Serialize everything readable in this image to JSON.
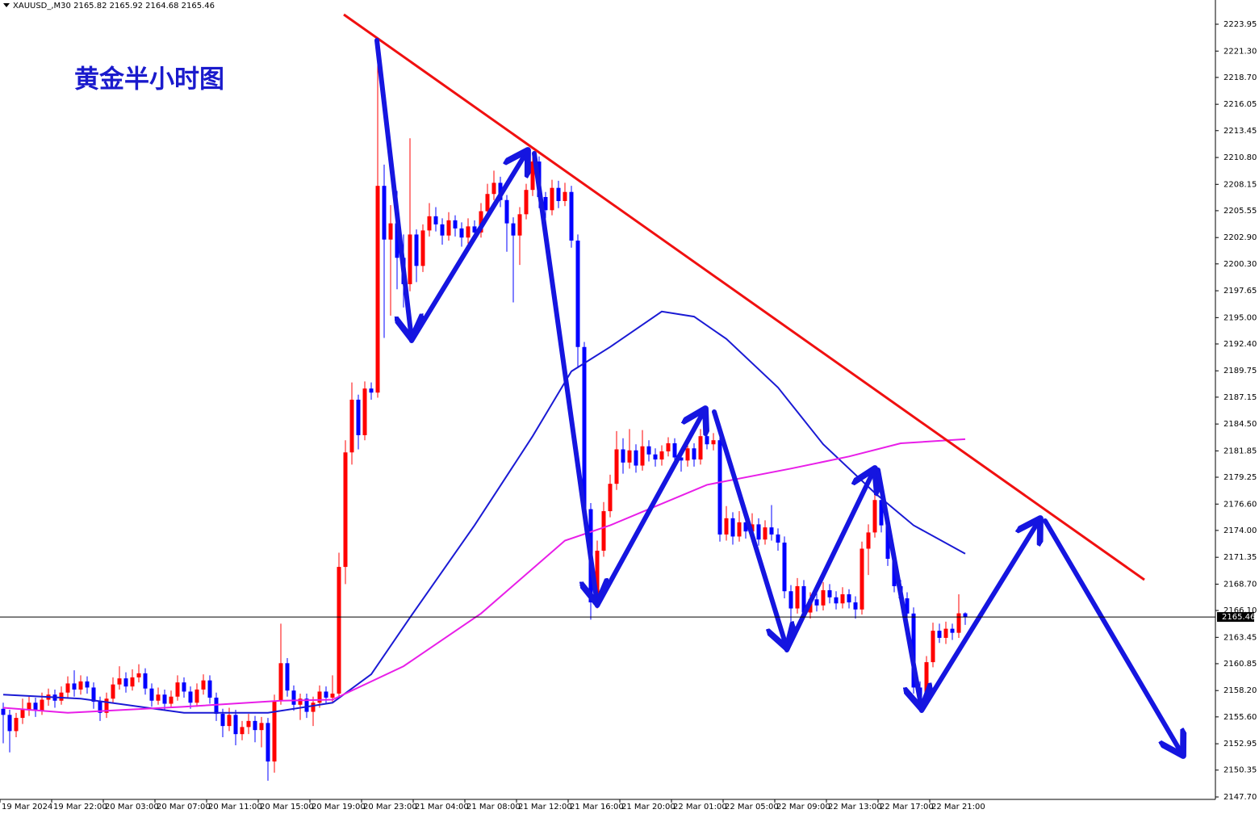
{
  "header": "XAUUSD_,M30  2165.82 2165.92 2164.68 2165.46",
  "chart_data": {
    "type": "candlestick",
    "title": "黄金半小时图",
    "up_color": "#ff0000",
    "down_color": "#0000ff",
    "ylim": [
      2147.46,
      2226.34
    ],
    "yticks": [
      {
        "value": 2147.7,
        "label": "2147.70"
      },
      2150.35,
      2152.95,
      {
        "value": 2155.6,
        "label": "2155.60"
      },
      {
        "value": 2158.2,
        "label": "2158.20"
      },
      2160.85,
      2163.45,
      {
        "value": 2166.1,
        "label": "2166.10"
      },
      {
        "value": 2168.7,
        "label": "2168.70"
      },
      2171.35,
      {
        "value": 2174.0,
        "label": "2174.00"
      },
      {
        "value": 2176.6,
        "label": "2176.60"
      },
      2179.25,
      2181.85,
      {
        "value": 2184.5,
        "label": "2184.50"
      },
      2187.15,
      2189.75,
      {
        "value": 2192.4,
        "label": "2192.40"
      },
      {
        "value": 2195.0,
        "label": "2195.00"
      },
      2197.65,
      {
        "value": 2200.3,
        "label": "2200.30"
      },
      {
        "value": 2202.9,
        "label": "2202.90"
      },
      2205.55,
      2208.15,
      {
        "value": 2210.8,
        "label": "2210.80"
      },
      2213.45,
      2216.05,
      {
        "value": 2218.7,
        "label": "2218.70"
      },
      {
        "value": 2221.3,
        "label": "2221.30"
      },
      2223.95
    ],
    "last_price": 2165.46,
    "categories": [
      "19 Mar 2024",
      null,
      null,
      null,
      null,
      null,
      null,
      null,
      "19 Mar 22:00",
      null,
      null,
      null,
      null,
      null,
      null,
      null,
      "20 Mar 03:00",
      null,
      null,
      null,
      null,
      null,
      null,
      null,
      "20 Mar 07:00",
      null,
      null,
      null,
      null,
      null,
      null,
      null,
      "20 Mar 11:00",
      null,
      null,
      null,
      null,
      null,
      null,
      null,
      "20 Mar 15:00",
      null,
      null,
      null,
      null,
      null,
      null,
      null,
      "20 Mar 19:00",
      null,
      null,
      null,
      null,
      null,
      null,
      null,
      "20 Mar 23:00",
      null,
      null,
      null,
      null,
      null,
      null,
      null,
      "21 Mar 04:00",
      null,
      null,
      null,
      null,
      null,
      null,
      null,
      "21 Mar 08:00",
      null,
      null,
      null,
      null,
      null,
      null,
      null,
      "21 Mar 12:00",
      null,
      null,
      null,
      null,
      null,
      null,
      null,
      "21 Mar 16:00",
      null,
      null,
      null,
      null,
      null,
      null,
      null,
      "21 Mar 20:00",
      null,
      null,
      null,
      null,
      null,
      null,
      null,
      "22 Mar 01:00",
      null,
      null,
      null,
      null,
      null,
      null,
      null,
      "22 Mar 05:00",
      null,
      null,
      null,
      null,
      null,
      null,
      null,
      "22 Mar 09:00",
      null,
      null,
      null,
      null,
      null,
      null,
      null,
      "22 Mar 13:00",
      null,
      null,
      null,
      null,
      null,
      null,
      null,
      "22 Mar 17:00",
      null,
      null,
      null,
      null,
      null,
      null,
      null,
      "22 Mar 21:00",
      null,
      null,
      null,
      null,
      null
    ],
    "ohlc": [
      [
        2156.4,
        2157.0,
        2153.0,
        2155.8
      ],
      [
        2155.8,
        2156.3,
        2152.1,
        2154.2
      ],
      [
        2154.2,
        2156.0,
        2153.6,
        2155.5
      ],
      [
        2155.5,
        2157.4,
        2154.9,
        2156.3
      ],
      [
        2156.3,
        2157.6,
        2155.7,
        2157.0
      ],
      [
        2157.0,
        2157.5,
        2155.6,
        2156.2
      ],
      [
        2156.2,
        2158.0,
        2155.8,
        2157.3
      ],
      [
        2157.3,
        2158.4,
        2156.7,
        2157.8
      ],
      [
        2157.8,
        2158.3,
        2156.5,
        2157.2
      ],
      [
        2157.2,
        2158.6,
        2156.8,
        2158.0
      ],
      [
        2158.0,
        2159.6,
        2157.4,
        2158.9
      ],
      [
        2158.9,
        2160.2,
        2157.6,
        2158.3
      ],
      [
        2158.3,
        2159.7,
        2157.8,
        2159.1
      ],
      [
        2159.1,
        2159.6,
        2157.9,
        2158.5
      ],
      [
        2158.5,
        2159.0,
        2156.4,
        2157.1
      ],
      [
        2157.1,
        2157.6,
        2155.2,
        2156.0
      ],
      [
        2156.0,
        2158.0,
        2155.5,
        2157.4
      ],
      [
        2157.4,
        2159.5,
        2157.0,
        2158.8
      ],
      [
        2158.8,
        2160.6,
        2158.3,
        2159.4
      ],
      [
        2159.4,
        2160.0,
        2158.0,
        2158.6
      ],
      [
        2158.6,
        2160.3,
        2158.2,
        2159.5
      ],
      [
        2159.5,
        2160.8,
        2159.0,
        2159.9
      ],
      [
        2159.9,
        2160.4,
        2157.8,
        2158.4
      ],
      [
        2158.4,
        2158.9,
        2156.6,
        2157.2
      ],
      [
        2157.2,
        2158.5,
        2156.8,
        2157.8
      ],
      [
        2157.8,
        2158.3,
        2156.3,
        2156.9
      ],
      [
        2156.9,
        2158.2,
        2156.5,
        2157.6
      ],
      [
        2157.6,
        2159.7,
        2157.2,
        2159.0
      ],
      [
        2159.0,
        2159.5,
        2157.5,
        2158.1
      ],
      [
        2158.1,
        2158.6,
        2156.4,
        2157.0
      ],
      [
        2157.0,
        2158.9,
        2156.6,
        2158.3
      ],
      [
        2158.3,
        2159.8,
        2157.8,
        2159.2
      ],
      [
        2159.2,
        2159.7,
        2156.9,
        2157.5
      ],
      [
        2157.5,
        2158.0,
        2155.2,
        2155.9
      ],
      [
        2155.9,
        2156.4,
        2153.6,
        2154.7
      ],
      [
        2154.7,
        2156.5,
        2154.2,
        2155.8
      ],
      [
        2155.8,
        2156.3,
        2152.8,
        2153.9
      ],
      [
        2153.9,
        2155.2,
        2153.3,
        2154.6
      ],
      [
        2154.6,
        2155.9,
        2153.9,
        2155.2
      ],
      [
        2155.2,
        2155.7,
        2153.1,
        2154.3
      ],
      [
        2154.3,
        2155.6,
        2152.6,
        2155.0
      ],
      [
        2155.0,
        2155.5,
        2149.3,
        2151.2
      ],
      [
        2151.2,
        2157.8,
        2150.1,
        2157.2
      ],
      [
        2157.2,
        2164.8,
        2156.8,
        2160.9
      ],
      [
        2160.9,
        2161.4,
        2157.6,
        2158.2
      ],
      [
        2158.2,
        2158.7,
        2156.2,
        2156.8
      ],
      [
        2156.8,
        2157.9,
        2155.3,
        2157.4
      ],
      [
        2157.4,
        2157.9,
        2155.5,
        2156.1
      ],
      [
        2156.1,
        2157.6,
        2154.7,
        2157.0
      ],
      [
        2157.0,
        2158.7,
        2156.5,
        2158.1
      ],
      [
        2158.1,
        2158.6,
        2156.9,
        2157.5
      ],
      [
        2157.5,
        2159.7,
        2157.1,
        2157.9
      ],
      [
        2157.9,
        2171.8,
        2157.5,
        2170.4
      ],
      [
        2170.4,
        2182.9,
        2168.7,
        2181.7
      ],
      [
        2181.7,
        2188.6,
        2180.5,
        2186.9
      ],
      [
        2186.9,
        2187.4,
        2182.0,
        2183.4
      ],
      [
        2183.4,
        2188.7,
        2182.9,
        2188.0
      ],
      [
        2188.0,
        2188.6,
        2186.9,
        2187.6
      ],
      [
        2187.6,
        2222.4,
        2187.1,
        2208.0
      ],
      [
        2208.0,
        2210.1,
        2193.0,
        2202.7
      ],
      [
        2202.7,
        2206.1,
        2195.2,
        2204.3
      ],
      [
        2204.3,
        2207.5,
        2197.8,
        2200.9
      ],
      [
        2200.9,
        2203.2,
        2196.0,
        2198.3
      ],
      [
        2198.3,
        2212.7,
        2197.6,
        2203.2
      ],
      [
        2203.2,
        2203.7,
        2198.5,
        2200.1
      ],
      [
        2200.1,
        2204.2,
        2199.5,
        2203.6
      ],
      [
        2203.6,
        2206.3,
        2203.0,
        2205.0
      ],
      [
        2205.0,
        2205.9,
        2203.5,
        2204.2
      ],
      [
        2204.2,
        2204.8,
        2202.2,
        2203.1
      ],
      [
        2203.1,
        2205.4,
        2202.6,
        2204.6
      ],
      [
        2204.6,
        2205.1,
        2203.0,
        2203.8
      ],
      [
        2203.8,
        2204.4,
        2202.0,
        2202.9
      ],
      [
        2202.9,
        2204.8,
        2202.3,
        2204.0
      ],
      [
        2204.0,
        2204.6,
        2202.7,
        2203.4
      ],
      [
        2203.4,
        2206.3,
        2202.9,
        2205.5
      ],
      [
        2205.5,
        2208.2,
        2205.0,
        2207.2
      ],
      [
        2207.2,
        2209.5,
        2206.6,
        2208.3
      ],
      [
        2208.3,
        2208.9,
        2205.9,
        2206.6
      ],
      [
        2206.6,
        2207.1,
        2201.5,
        2204.3
      ],
      [
        2204.3,
        2204.9,
        2196.5,
        2203.1
      ],
      [
        2203.1,
        2205.9,
        2200.2,
        2205.2
      ],
      [
        2205.2,
        2208.2,
        2204.7,
        2207.6
      ],
      [
        2207.6,
        2211.2,
        2207.0,
        2210.4
      ],
      [
        2210.4,
        2210.9,
        2205.8,
        2206.9
      ],
      [
        2206.9,
        2207.4,
        2204.8,
        2205.6
      ],
      [
        2205.6,
        2208.6,
        2205.1,
        2207.8
      ],
      [
        2207.8,
        2208.5,
        2205.8,
        2206.5
      ],
      [
        2206.5,
        2208.3,
        2206.0,
        2207.4
      ],
      [
        2207.4,
        2208.0,
        2201.9,
        2202.6
      ],
      [
        2202.6,
        2203.2,
        2190.0,
        2192.1
      ],
      [
        2192.1,
        2192.6,
        2174.8,
        2176.1
      ],
      [
        2176.1,
        2176.7,
        2165.2,
        2166.9
      ],
      [
        2166.9,
        2173.0,
        2166.3,
        2172.0
      ],
      [
        2172.0,
        2176.8,
        2171.4,
        2175.9
      ],
      [
        2175.9,
        2179.5,
        2175.3,
        2178.6
      ],
      [
        2178.6,
        2183.8,
        2178.0,
        2182.0
      ],
      [
        2182.0,
        2183.1,
        2179.6,
        2180.7
      ],
      [
        2180.7,
        2184.0,
        2180.1,
        2181.9
      ],
      [
        2181.9,
        2182.5,
        2179.7,
        2180.4
      ],
      [
        2180.4,
        2183.9,
        2179.9,
        2182.3
      ],
      [
        2182.3,
        2182.9,
        2180.8,
        2181.5
      ],
      [
        2181.5,
        2182.1,
        2180.3,
        2181.0
      ],
      [
        2181.0,
        2182.4,
        2180.4,
        2181.8
      ],
      [
        2181.8,
        2183.2,
        2181.3,
        2182.6
      ],
      [
        2182.6,
        2183.1,
        2180.6,
        2181.2
      ],
      [
        2181.2,
        2181.8,
        2179.8,
        2180.9
      ],
      [
        2180.9,
        2182.7,
        2180.3,
        2182.1
      ],
      [
        2182.1,
        2182.6,
        2180.3,
        2181.0
      ],
      [
        2181.0,
        2184.0,
        2180.5,
        2183.3
      ],
      [
        2183.3,
        2184.6,
        2182.0,
        2182.5
      ],
      [
        2182.5,
        2183.6,
        2181.9,
        2182.9
      ],
      [
        2182.9,
        2183.4,
        2172.9,
        2173.6
      ],
      [
        2173.6,
        2176.4,
        2173.0,
        2175.2
      ],
      [
        2175.2,
        2175.8,
        2172.6,
        2173.4
      ],
      [
        2173.4,
        2175.9,
        2172.9,
        2174.8
      ],
      [
        2174.8,
        2175.4,
        2173.2,
        2173.9
      ],
      [
        2173.9,
        2175.7,
        2173.4,
        2174.6
      ],
      [
        2174.6,
        2175.2,
        2172.5,
        2173.1
      ],
      [
        2173.1,
        2175.0,
        2172.6,
        2174.3
      ],
      [
        2174.3,
        2176.5,
        2173.0,
        2173.6
      ],
      [
        2173.6,
        2174.2,
        2172.0,
        2172.8
      ],
      [
        2172.8,
        2173.4,
        2167.3,
        2168.0
      ],
      [
        2168.0,
        2168.6,
        2164.0,
        2166.3
      ],
      [
        2166.3,
        2169.3,
        2165.8,
        2168.5
      ],
      [
        2168.5,
        2169.1,
        2165.3,
        2165.9
      ],
      [
        2165.9,
        2167.9,
        2165.3,
        2167.2
      ],
      [
        2167.2,
        2167.8,
        2166.0,
        2166.6
      ],
      [
        2166.6,
        2168.9,
        2166.1,
        2168.1
      ],
      [
        2168.1,
        2168.7,
        2166.8,
        2167.4
      ],
      [
        2167.4,
        2168.0,
        2166.2,
        2166.8
      ],
      [
        2166.8,
        2168.4,
        2166.3,
        2167.7
      ],
      [
        2167.7,
        2168.2,
        2166.3,
        2166.9
      ],
      [
        2166.9,
        2167.5,
        2165.3,
        2166.2
      ],
      [
        2166.2,
        2172.9,
        2165.7,
        2172.2
      ],
      [
        2172.2,
        2174.6,
        2169.6,
        2173.8
      ],
      [
        2173.8,
        2178.9,
        2173.3,
        2177.0
      ],
      [
        2177.0,
        2177.6,
        2173.8,
        2174.5
      ],
      [
        2174.5,
        2175.1,
        2170.5,
        2171.2
      ],
      [
        2171.2,
        2171.8,
        2167.9,
        2168.5
      ],
      [
        2168.5,
        2169.1,
        2166.6,
        2167.3
      ],
      [
        2167.3,
        2167.9,
        2165.1,
        2165.8
      ],
      [
        2165.8,
        2166.4,
        2157.9,
        2158.5
      ],
      [
        2158.5,
        2159.1,
        2156.3,
        2157.2
      ],
      [
        2157.2,
        2161.6,
        2156.8,
        2161.0
      ],
      [
        2161.0,
        2164.9,
        2160.5,
        2164.1
      ],
      [
        2164.1,
        2164.8,
        2162.9,
        2163.4
      ],
      [
        2163.4,
        2165.0,
        2162.8,
        2164.3
      ],
      [
        2164.3,
        2164.8,
        2163.2,
        2163.9
      ],
      [
        2163.9,
        2167.7,
        2163.4,
        2165.82
      ],
      [
        2165.82,
        2165.92,
        2164.68,
        2165.46
      ]
    ],
    "lines": [
      {
        "color": "#1a1ad4",
        "x": [
          0,
          12,
          28,
          41,
          51,
          57,
          63,
          73,
          82,
          88,
          94,
          102,
          107,
          112,
          120,
          127,
          135,
          141,
          149
        ],
        "values": [
          2157.8,
          2157.4,
          2156.0,
          2156.0,
          2157.0,
          2159.8,
          2165.4,
          2174.5,
          2183.3,
          2189.7,
          2192.1,
          2195.6,
          2195.1,
          2192.9,
          2188.1,
          2182.5,
          2177.7,
          2174.5,
          2171.7
        ]
      },
      {
        "color": "#e81ee8",
        "x": [
          0,
          10,
          28,
          43,
          51,
          62,
          74,
          87,
          94,
          109,
          122,
          131,
          139,
          149
        ],
        "values": [
          2156.5,
          2156.0,
          2156.6,
          2157.2,
          2157.3,
          2160.6,
          2165.8,
          2173.0,
          2174.5,
          2178.5,
          2180.1,
          2181.3,
          2182.6,
          2183.0
        ]
      }
    ]
  }
}
